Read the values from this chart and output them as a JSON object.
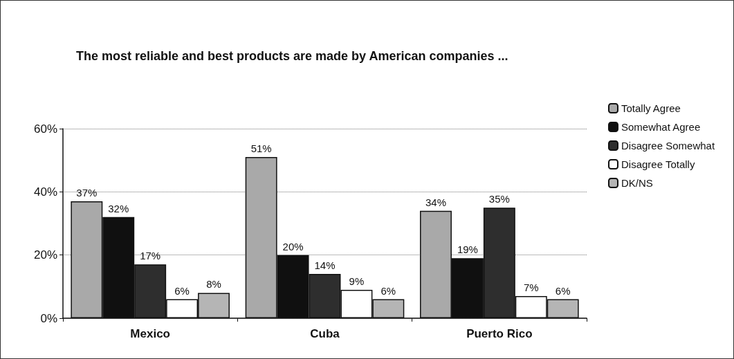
{
  "chart_data": {
    "type": "bar",
    "title": "The most reliable and best products are made by American companies ...",
    "categories": [
      "Mexico",
      "Cuba",
      "Puerto Rico"
    ],
    "series": [
      {
        "name": "Totally Agree",
        "color": "#a9a9a9",
        "values": [
          37,
          51,
          34
        ],
        "value_labels": [
          "37%",
          "51%",
          "34%"
        ]
      },
      {
        "name": "Somewhat Agree",
        "color": "#101010",
        "values": [
          32,
          20,
          19
        ],
        "value_labels": [
          "32%",
          "20%",
          "19%"
        ]
      },
      {
        "name": "Disagree Somewhat",
        "color": "#2e2e2e",
        "values": [
          17,
          14,
          35
        ],
        "value_labels": [
          "17%",
          "14%",
          "35%"
        ]
      },
      {
        "name": "Disagree Totally",
        "color": "#ffffff",
        "values": [
          6,
          9,
          7
        ],
        "value_labels": [
          "6%",
          "9%",
          "7%"
        ]
      },
      {
        "name": "DK/NS",
        "color": "#b5b5b5",
        "values": [
          8,
          6,
          6
        ],
        "value_labels": [
          "8%",
          "6%",
          "6%"
        ]
      }
    ],
    "ylim": [
      0,
      60
    ],
    "yticks": [
      {
        "value": 0,
        "label": "0%"
      },
      {
        "value": 20,
        "label": "20%"
      },
      {
        "value": 40,
        "label": "40%"
      },
      {
        "value": 60,
        "label": "60%"
      }
    ],
    "grid": "y",
    "legend": "right"
  }
}
